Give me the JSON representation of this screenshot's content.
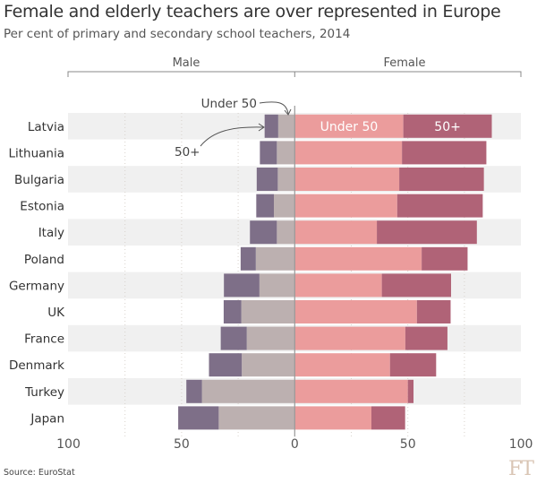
{
  "chart_data": {
    "type": "bar",
    "title": "Female and elderly teachers are over represented in Europe",
    "subtitle": "Per cent of primary and secondary school teachers, 2014",
    "groups": [
      "Male",
      "Female"
    ],
    "categories": [
      "Latvia",
      "Lithuania",
      "Bulgaria",
      "Estonia",
      "Italy",
      "Poland",
      "Germany",
      "UK",
      "France",
      "Denmark",
      "Turkey",
      "Japan"
    ],
    "series": [
      {
        "name": "Under 50",
        "group": "Male",
        "values": [
          7.3,
          7.9,
          7.5,
          9.2,
          7.9,
          17.2,
          15.6,
          23.6,
          21.2,
          23.4,
          41.0,
          33.6
        ]
      },
      {
        "name": "50+",
        "group": "Male",
        "values": [
          6.0,
          7.5,
          9.3,
          7.8,
          11.9,
          6.7,
          15.7,
          7.8,
          11.5,
          14.5,
          6.9,
          17.9
        ]
      },
      {
        "name": "Under 50",
        "group": "Female",
        "values": [
          48.0,
          47.4,
          46.2,
          45.3,
          36.3,
          56.1,
          38.5,
          54.0,
          48.9,
          42.1,
          50.0,
          33.9
        ]
      },
      {
        "name": "50+",
        "group": "Female",
        "values": [
          39.1,
          37.3,
          37.4,
          37.8,
          44.2,
          20.3,
          30.6,
          14.9,
          18.6,
          20.4,
          2.5,
          14.9
        ]
      }
    ],
    "xlim": [
      -100,
      100
    ],
    "xticks": [
      "100",
      "50",
      "0",
      "50",
      "100"
    ],
    "grid": true,
    "annotations": {
      "under50": "Under 50",
      "over50": "50+"
    },
    "colors": {
      "male_under50": "#bcb0b0",
      "male_50plus": "#7e6f88",
      "female_under50": "#eb9c9c",
      "female_50plus": "#b06377",
      "band": "#f0f0f0"
    }
  },
  "source": "Source: EuroStat",
  "logo": "FT"
}
